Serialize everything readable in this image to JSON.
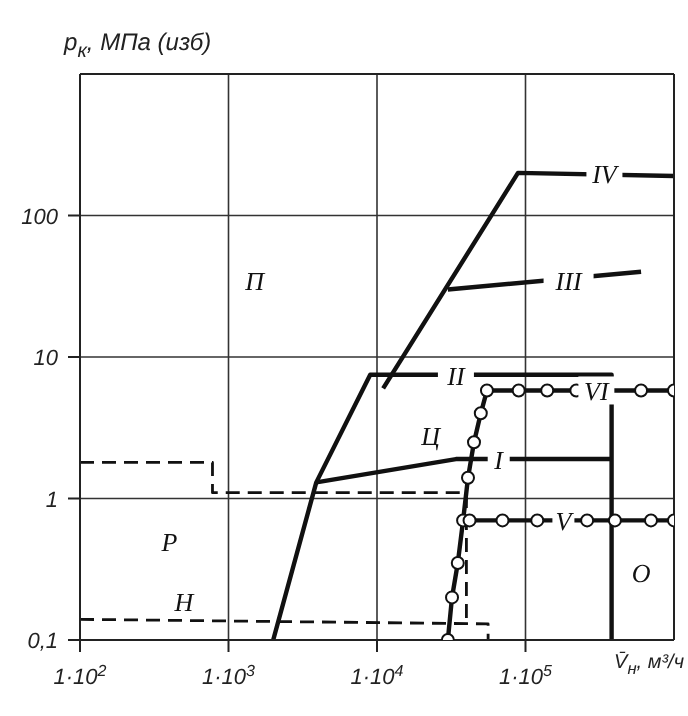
{
  "chart_data": {
    "type": "line",
    "xlabel": "V̄$_{н}$, м³/ч",
    "ylabel": "p$_{к}$, МПа (изб)",
    "log": "xy",
    "grid": true,
    "legend": false,
    "marker": "none",
    "xlim": [
      100,
      1000000
    ],
    "xticks": [
      {
        "value": 100,
        "label": "1·10$^{2}$"
      },
      {
        "value": 1000,
        "label": "1·10$^{3}$"
      },
      {
        "value": 10000,
        "label": "1·10$^{4}$"
      },
      {
        "value": 100000,
        "label": "1·10$^{5}$"
      }
    ],
    "ylim": [
      0.1,
      1000
    ],
    "yticks": [
      {
        "value": 0.1,
        "label": "0,1"
      },
      1,
      10,
      100
    ],
    "series": [
      {
        "color": "#111111",
        "line_style": "solid",
        "x": [
          2000,
          3900,
          9000,
          380000,
          380000
        ],
        "values": [
          0.1,
          1.3,
          7.5,
          7.5,
          0.1
        ]
      },
      {
        "color": "#111111",
        "line_style": "solid",
        "x": [
          3900,
          34000,
          380000
        ],
        "values": [
          1.3,
          1.9,
          1.9
        ]
      },
      {
        "color": "#111111",
        "line_style": "solid",
        "x": [
          11000,
          89000,
          1000000
        ],
        "values": [
          6,
          200,
          190
        ]
      },
      {
        "color": "#111111",
        "line_style": "solid",
        "x": [
          30000,
          600000
        ],
        "values": [
          30,
          40
        ]
      },
      {
        "color": "#111111",
        "line_style": "solid",
        "marker": "circle",
        "x": [
          30000,
          32000,
          35000,
          38000,
          41000,
          45000,
          50000,
          55000,
          90000,
          140000,
          220000,
          600000,
          1000000
        ],
        "values": [
          0.1,
          0.2,
          0.35,
          0.7,
          1.4,
          2.5,
          4,
          5.8,
          5.8,
          5.8,
          5.8,
          5.8,
          5.8
        ]
      },
      {
        "color": "#111111",
        "line_style": "solid",
        "marker": "circle",
        "x": [
          42000,
          70000,
          120000,
          260000,
          400000,
          700000,
          1000000
        ],
        "values": [
          0.7,
          0.7,
          0.7,
          0.7,
          0.7,
          0.7,
          0.7
        ]
      },
      {
        "color": "#111111",
        "line_style": "dashed",
        "x": [
          100,
          780,
          780,
          40000,
          40000
        ],
        "values": [
          1.8,
          1.8,
          1.1,
          1.1,
          0.13
        ]
      },
      {
        "color": "#111111",
        "line_style": "dashed",
        "x": [
          100,
          56000,
          56000
        ],
        "values": [
          0.14,
          0.13,
          0.1
        ]
      }
    ],
    "annotations": [
      {
        "text": "П",
        "x": 1500,
        "y": 35
      },
      {
        "text": "Р",
        "x": 400,
        "y": 0.5
      },
      {
        "text": "Н",
        "x": 500,
        "y": 0.19
      },
      {
        "text": "Ц",
        "x": 23000,
        "y": 2.8
      },
      {
        "text": "О",
        "x": 600000,
        "y": 0.3
      },
      {
        "text": "I",
        "x": 66000,
        "y": 1.9
      },
      {
        "text": "II",
        "x": 34000,
        "y": 7.5
      },
      {
        "text": "III",
        "x": 195000,
        "y": 35
      },
      {
        "text": "IV",
        "x": 340000,
        "y": 200
      },
      {
        "text": "V",
        "x": 180000,
        "y": 0.7
      },
      {
        "text": "VI",
        "x": 300000,
        "y": 5.8
      }
    ]
  }
}
